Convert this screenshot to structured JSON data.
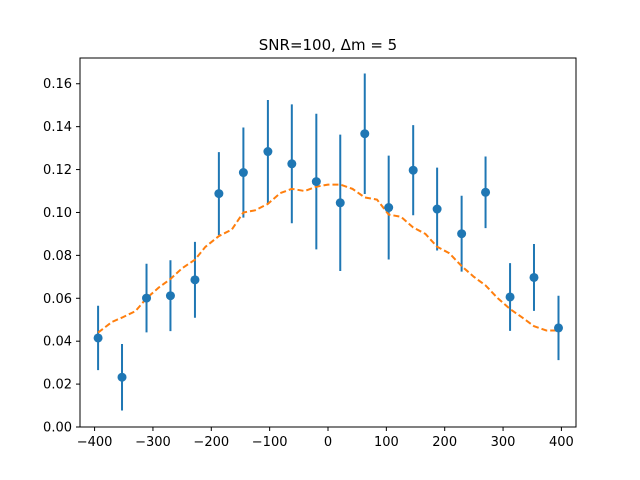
{
  "chart_data": {
    "type": "scatter",
    "title": "SNR=100, Δm = 5",
    "xlabel": "",
    "ylabel": "",
    "xlim": [
      -425,
      425
    ],
    "ylim": [
      0,
      0.172
    ],
    "x_ticks": [
      -400,
      -300,
      -200,
      -100,
      0,
      100,
      200,
      300,
      400
    ],
    "x_tick_labels": [
      "−400",
      "−300",
      "−200",
      "−100",
      "0",
      "100",
      "200",
      "300",
      "400"
    ],
    "y_ticks": [
      0.0,
      0.02,
      0.04,
      0.06,
      0.08,
      0.1,
      0.12,
      0.14,
      0.16
    ],
    "y_tick_labels": [
      "0.00",
      "0.02",
      "0.04",
      "0.06",
      "0.08",
      "0.10",
      "0.12",
      "0.14",
      "0.16"
    ],
    "grid": false,
    "series": [
      {
        "kind": "errorbar",
        "color": "#1f77b4",
        "points": [
          {
            "x": -394,
            "y": 0.0415,
            "yerr": 0.015
          },
          {
            "x": -353,
            "y": 0.0232,
            "yerr": 0.0155
          },
          {
            "x": -311,
            "y": 0.0601,
            "yerr": 0.016
          },
          {
            "x": -270,
            "y": 0.0612,
            "yerr": 0.0165
          },
          {
            "x": -228,
            "y": 0.0686,
            "yerr": 0.0177
          },
          {
            "x": -187,
            "y": 0.1088,
            "yerr": 0.0193
          },
          {
            "x": -145,
            "y": 0.1186,
            "yerr": 0.021
          },
          {
            "x": -103,
            "y": 0.1284,
            "yerr": 0.024
          },
          {
            "x": -62,
            "y": 0.1227,
            "yerr": 0.0277
          },
          {
            "x": -20,
            "y": 0.1144,
            "yerr": 0.0316
          },
          {
            "x": 21,
            "y": 0.1045,
            "yerr": 0.0318
          },
          {
            "x": 63,
            "y": 0.1367,
            "yerr": 0.0281
          },
          {
            "x": 104,
            "y": 0.1023,
            "yerr": 0.0242
          },
          {
            "x": 146,
            "y": 0.1197,
            "yerr": 0.021
          },
          {
            "x": 187,
            "y": 0.1016,
            "yerr": 0.0193
          },
          {
            "x": 229,
            "y": 0.0901,
            "yerr": 0.0177
          },
          {
            "x": 270,
            "y": 0.1094,
            "yerr": 0.0167
          },
          {
            "x": 312,
            "y": 0.0606,
            "yerr": 0.0158
          },
          {
            "x": 353,
            "y": 0.0697,
            "yerr": 0.0156
          },
          {
            "x": 395,
            "y": 0.0462,
            "yerr": 0.015
          }
        ]
      },
      {
        "kind": "dashed-line",
        "color": "#ff7f0e",
        "x": [
          -394,
          -370,
          -353,
          -330,
          -311,
          -290,
          -270,
          -250,
          -228,
          -210,
          -187,
          -165,
          -145,
          -125,
          -103,
          -82,
          -62,
          -40,
          -20,
          0,
          21,
          42,
          63,
          84,
          104,
          125,
          146,
          167,
          187,
          208,
          229,
          250,
          270,
          291,
          312,
          333,
          353,
          374,
          395
        ],
        "y": [
          0.044,
          0.049,
          0.051,
          0.054,
          0.06,
          0.065,
          0.069,
          0.074,
          0.078,
          0.084,
          0.089,
          0.092,
          0.1,
          0.101,
          0.104,
          0.109,
          0.111,
          0.11,
          0.112,
          0.113,
          0.113,
          0.111,
          0.107,
          0.106,
          0.099,
          0.098,
          0.093,
          0.09,
          0.084,
          0.081,
          0.075,
          0.07,
          0.066,
          0.06,
          0.055,
          0.051,
          0.047,
          0.045,
          0.045
        ]
      }
    ]
  }
}
